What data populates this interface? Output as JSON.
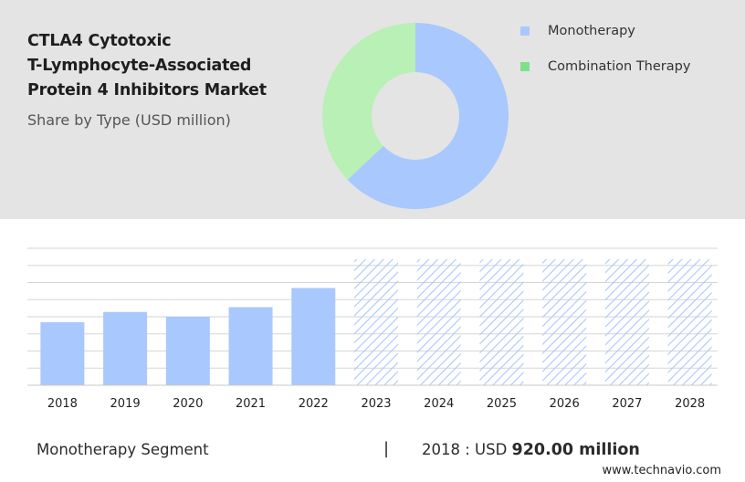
{
  "title_lines": [
    "CTLA4 Cytotoxic",
    "T-Lymphocyte-Associated",
    "Protein 4 Inhibitors Market"
  ],
  "subtitle": "Share by Type (USD million)",
  "colors": {
    "top_panel_bg": "#e4e4e4",
    "monotherapy": "#a9c8fd",
    "combination": "#b8f0b5",
    "legend_combination": "#7fe08c",
    "forecast_hatch": "#a9c8fd",
    "grid": "#d6d6d6"
  },
  "legend": [
    {
      "label": "Monotherapy",
      "color": "#a9c8fd"
    },
    {
      "label": "Combination Therapy",
      "color": "#7fe08c"
    }
  ],
  "footer": {
    "segment": "Monotherapy Segment",
    "separator": "|",
    "year_label": "2018 : USD",
    "value": "920.00 million"
  },
  "watermark": "www.technavio.com",
  "chart_data": [
    {
      "type": "pie",
      "style": "donut",
      "categories": [
        "Monotherapy",
        "Combination Therapy"
      ],
      "values": [
        63,
        37
      ],
      "colors": [
        "#a9c8fd",
        "#b8f0b5"
      ]
    },
    {
      "type": "bar",
      "categories": [
        "2018",
        "2019",
        "2020",
        "2021",
        "2022",
        "2023",
        "2024",
        "2025",
        "2026",
        "2027",
        "2028"
      ],
      "values": [
        920,
        1070,
        1000,
        1140,
        1420,
        1840,
        1840,
        1840,
        1840,
        1840,
        1840
      ],
      "forecast_from": "2023",
      "ylim": [
        0,
        2000
      ],
      "grid": true
    }
  ]
}
